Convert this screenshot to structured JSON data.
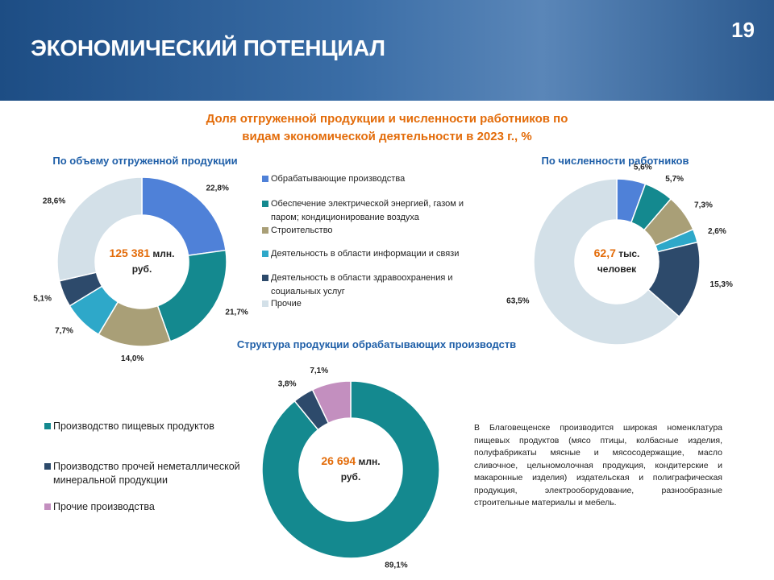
{
  "page_number": "19",
  "title": "ЭКОНОМИЧЕСКИЙ ПОТЕНЦИАЛ",
  "heading": "Доля отгруженной продукции и численности работников по видам экономической деятельности в 2023 г., %",
  "note": "В Благовещенске производится широкая номенклатура пищевых продуктов (мясо птицы, колбасные изделия, полуфабрикаты мясные и мясосодержащие, масло сливочное, цельномолочная продукция, кондитерские и макаронные изделия) издательская и полиграфическая продукция, электрооборудование, разнообразные строительные материалы и мебель.",
  "chart_data": [
    {
      "type": "donut",
      "title": "По объему отгруженной продукции",
      "categories": [
        "Обрабатывающие производства",
        "Обеспечение электрической энергией, газом и паром; кондиционирование воздуха",
        "Строительство",
        "Деятельность в области информации и связи",
        "Деятельность в области здравоохранения и социальных услуг",
        "Прочие"
      ],
      "values": [
        22.8,
        21.7,
        14.0,
        7.7,
        5.1,
        28.6
      ],
      "value_labels": [
        "22,8%",
        "21,7%",
        "14,0%",
        "7,7%",
        "5,1%",
        "28,6%"
      ],
      "colors": [
        "#4f81d8",
        "#14898f",
        "#a99f77",
        "#2ea8c9",
        "#2d4a6b",
        "#d3e0e8"
      ],
      "center_value": "125 381",
      "center_unit": "млн. руб."
    },
    {
      "type": "donut",
      "title": "По численности работников",
      "values": [
        5.6,
        5.7,
        7.3,
        2.6,
        15.3,
        63.5
      ],
      "value_labels": [
        "5,6%",
        "5,7%",
        "7,3%",
        "2,6%",
        "15,3%",
        "63,5%"
      ],
      "colors": [
        "#4f81d8",
        "#14898f",
        "#a99f77",
        "#2ea8c9",
        "#2d4a6b",
        "#d3e0e8"
      ],
      "center_value": "62,7",
      "center_unit": "тыс. человек"
    },
    {
      "type": "donut",
      "title": "Структура продукции обрабатывающих производств",
      "categories": [
        "Производство пищевых продуктов",
        "Производство прочей неметаллической минеральной продукции",
        "Прочие производства"
      ],
      "values": [
        89.1,
        3.8,
        7.1
      ],
      "value_labels": [
        "89,1%",
        "3,8%",
        "7,1%"
      ],
      "colors": [
        "#14898f",
        "#2d4a6b",
        "#c38fbf"
      ],
      "center_value": "26 694",
      "center_unit": "млн. руб."
    }
  ]
}
